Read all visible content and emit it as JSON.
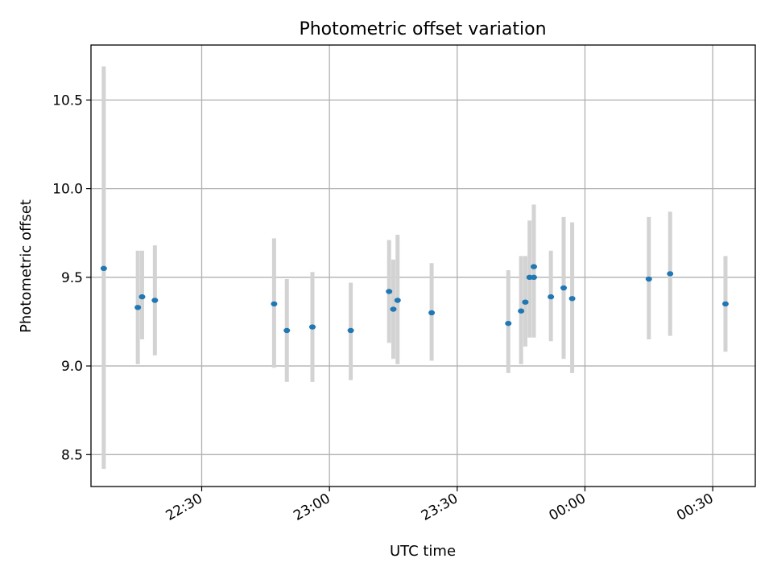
{
  "chart_data": {
    "type": "scatter",
    "title": "Photometric offset variation",
    "xlabel": "UTC time",
    "ylabel": "Photometric offset",
    "x_ticks": [
      {
        "label": "22:30",
        "value": "22:30"
      },
      {
        "label": "23:00",
        "value": "23:00"
      },
      {
        "label": "23:30",
        "value": "23:30"
      },
      {
        "label": "00:00",
        "value": "00:00"
      },
      {
        "label": "00:30",
        "value": "00:30"
      }
    ],
    "y_ticks": [
      "8.5",
      "9.0",
      "9.5",
      "10.0",
      "10.5"
    ],
    "xlim": [
      "22:04",
      "00:40"
    ],
    "ylim": [
      8.32,
      10.81
    ],
    "grid": true,
    "errorbar_color": "#d3d3d3",
    "marker_color": "#1f77b4",
    "series": [
      {
        "x": [
          "22:07",
          "22:15",
          "22:16",
          "22:19",
          "22:47",
          "22:50",
          "22:56",
          "23:05",
          "23:14",
          "23:15",
          "23:16",
          "23:24",
          "23:42",
          "23:45",
          "23:46",
          "23:47",
          "23:48",
          "23:48",
          "23:52",
          "23:55",
          "23:57",
          "00:15",
          "00:20",
          "00:33"
        ],
        "y": [
          9.55,
          9.33,
          9.39,
          9.37,
          9.35,
          9.2,
          9.22,
          9.2,
          9.42,
          9.32,
          9.37,
          9.3,
          9.24,
          9.31,
          9.36,
          9.5,
          9.5,
          9.56,
          9.39,
          9.44,
          9.38,
          9.49,
          9.52,
          9.35
        ],
        "yerr_low": [
          8.42,
          9.01,
          9.15,
          9.06,
          8.99,
          8.91,
          8.91,
          8.92,
          9.13,
          9.04,
          9.01,
          9.03,
          8.96,
          9.01,
          9.11,
          9.16,
          9.16,
          9.22,
          9.14,
          9.04,
          8.96,
          9.15,
          9.17,
          9.08
        ],
        "yerr_high": [
          10.69,
          9.65,
          9.65,
          9.68,
          9.72,
          9.49,
          9.53,
          9.47,
          9.71,
          9.6,
          9.74,
          9.58,
          9.54,
          9.62,
          9.62,
          9.82,
          9.85,
          9.91,
          9.65,
          9.84,
          9.81,
          9.84,
          9.87,
          9.62
        ]
      }
    ]
  }
}
